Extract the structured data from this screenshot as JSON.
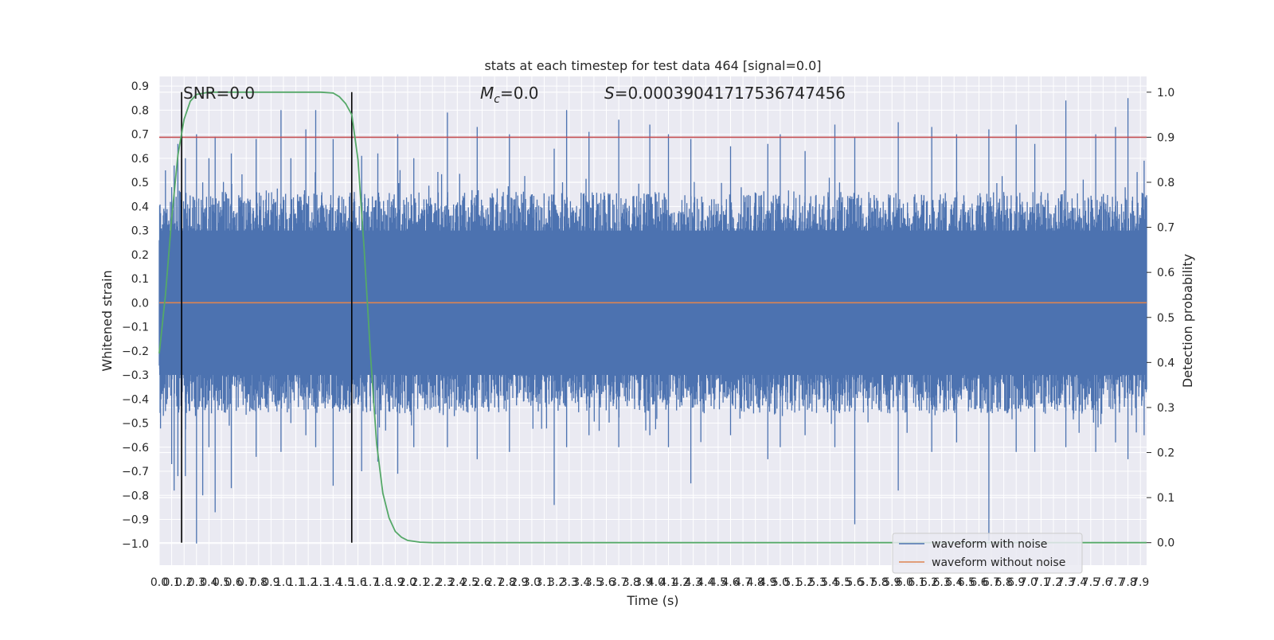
{
  "chart_data": {
    "type": "line",
    "title": "stats at each timestep for test data 464 [signal=0.0]",
    "xlabel": "Time (s)",
    "ylabel": "Whitened strain",
    "y2label": "Detection probability",
    "xlim": [
      0.0,
      7.95
    ],
    "ylim": [
      -1.09,
      0.94
    ],
    "y2lim": [
      -0.05,
      1.035
    ],
    "xticks": [
      "0.0",
      "0.1",
      "0.2",
      "0.3",
      "0.4",
      "0.5",
      "0.6",
      "0.7",
      "0.8",
      "0.9",
      "1.0",
      "1.1",
      "1.2",
      "1.3",
      "1.4",
      "1.5",
      "1.6",
      "1.7",
      "1.8",
      "1.9",
      "2.0",
      "2.1",
      "2.2",
      "2.3",
      "2.4",
      "2.5",
      "2.6",
      "2.7",
      "2.8",
      "2.9",
      "3.0",
      "3.1",
      "3.2",
      "3.3",
      "3.4",
      "3.5",
      "3.6",
      "3.7",
      "3.8",
      "3.9",
      "4.0",
      "4.1",
      "4.2",
      "4.3",
      "4.4",
      "4.5",
      "4.6",
      "4.7",
      "4.8",
      "4.9",
      "5.0",
      "5.1",
      "5.2",
      "5.3",
      "5.4",
      "5.5",
      "5.6",
      "5.7",
      "5.8",
      "5.9",
      "6.0",
      "6.1",
      "6.2",
      "6.3",
      "6.4",
      "6.5",
      "6.6",
      "6.7",
      "6.8",
      "6.9",
      "7.0",
      "7.1",
      "7.2",
      "7.3",
      "7.4",
      "7.5",
      "7.6",
      "7.7",
      "7.8",
      "7.9"
    ],
    "yticks": [
      "0.9",
      "0.8",
      "0.7",
      "0.6",
      "0.5",
      "0.4",
      "0.3",
      "0.2",
      "0.1",
      "0.0",
      "−0.1",
      "−0.2",
      "−0.3",
      "−0.4",
      "−0.5",
      "−0.6",
      "−0.7",
      "−0.8",
      "−0.9",
      "−1.0"
    ],
    "y2ticks": [
      "1.0",
      "0.9",
      "0.8",
      "0.7",
      "0.6",
      "0.5",
      "0.4",
      "0.3",
      "0.2",
      "0.1",
      "0.0"
    ],
    "annotations": {
      "snr": "SNR=0.0",
      "mc_symbol": "M",
      "mc_sub": "c",
      "mc_value": "=0.0",
      "s_symbol": "S",
      "s_value": "=0.00039041717536747456"
    },
    "series": [
      {
        "name": "waveform with noise",
        "color": "#4c72b0",
        "description": "noise spanning roughly -1.0 to 0.85",
        "spikes": [
          [
            0.05,
            0.55,
            -0.45
          ],
          [
            0.1,
            0.48,
            -0.67
          ],
          [
            0.12,
            0.57,
            -0.78
          ],
          [
            0.15,
            0.66,
            -0.72
          ],
          [
            0.18,
            0.4,
            -0.56
          ],
          [
            0.21,
            0.6,
            -0.72
          ],
          [
            0.3,
            0.7,
            -1.0
          ],
          [
            0.35,
            0.5,
            -0.8
          ],
          [
            0.4,
            0.6,
            -0.6
          ],
          [
            0.45,
            0.69,
            -0.87
          ],
          [
            0.58,
            0.62,
            -0.77
          ],
          [
            0.78,
            0.68,
            -0.64
          ],
          [
            0.98,
            0.8,
            -0.62
          ],
          [
            1.06,
            0.6,
            -0.5
          ],
          [
            1.18,
            0.72,
            -0.55
          ],
          [
            1.26,
            0.8,
            -0.6
          ],
          [
            1.4,
            0.68,
            -0.76
          ],
          [
            1.55,
            0.85,
            -0.81
          ],
          [
            1.63,
            0.61,
            -0.7
          ],
          [
            1.76,
            0.62,
            -0.66
          ],
          [
            1.92,
            0.7,
            -0.71
          ],
          [
            2.05,
            0.6,
            -0.6
          ],
          [
            2.32,
            0.79,
            -0.6
          ],
          [
            2.56,
            0.73,
            -0.65
          ],
          [
            2.82,
            0.7,
            -0.62
          ],
          [
            3.18,
            0.64,
            -0.84
          ],
          [
            3.28,
            0.8,
            -0.6
          ],
          [
            3.46,
            0.71,
            -0.55
          ],
          [
            3.7,
            0.76,
            -0.6
          ],
          [
            3.95,
            0.74,
            -0.55
          ],
          [
            4.1,
            0.7,
            -0.6
          ],
          [
            4.28,
            0.68,
            -0.75
          ],
          [
            4.6,
            0.65,
            -0.55
          ],
          [
            4.9,
            0.66,
            -0.65
          ],
          [
            5.0,
            0.7,
            -0.6
          ],
          [
            5.2,
            0.63,
            -0.55
          ],
          [
            5.44,
            0.74,
            -0.6
          ],
          [
            5.6,
            0.69,
            -0.92
          ],
          [
            5.95,
            0.75,
            -0.78
          ],
          [
            6.22,
            0.73,
            -0.62
          ],
          [
            6.42,
            0.7,
            -0.58
          ],
          [
            6.68,
            0.72,
            -0.99
          ],
          [
            6.9,
            0.74,
            -0.62
          ],
          [
            7.05,
            0.66,
            -0.62
          ],
          [
            7.3,
            0.84,
            -0.6
          ],
          [
            7.54,
            0.7,
            -0.62
          ],
          [
            7.7,
            0.73,
            -0.58
          ],
          [
            7.8,
            0.85,
            -0.65
          ],
          [
            7.93,
            0.59,
            -0.55
          ]
        ]
      },
      {
        "name": "waveform without noise",
        "color": "#dd8452",
        "y": 0.0
      }
    ],
    "probability_series": {
      "color": "#55a868",
      "points": [
        [
          0.0,
          0.42
        ],
        [
          0.05,
          0.55
        ],
        [
          0.1,
          0.72
        ],
        [
          0.15,
          0.86
        ],
        [
          0.2,
          0.94
        ],
        [
          0.25,
          0.98
        ],
        [
          0.3,
          0.995
        ],
        [
          0.4,
          1.0
        ],
        [
          1.3,
          1.0
        ],
        [
          1.4,
          0.998
        ],
        [
          1.45,
          0.99
        ],
        [
          1.5,
          0.975
        ],
        [
          1.55,
          0.95
        ],
        [
          1.6,
          0.85
        ],
        [
          1.65,
          0.65
        ],
        [
          1.7,
          0.42
        ],
        [
          1.75,
          0.22
        ],
        [
          1.8,
          0.11
        ],
        [
          1.85,
          0.055
        ],
        [
          1.9,
          0.025
        ],
        [
          1.95,
          0.012
        ],
        [
          2.0,
          0.005
        ],
        [
          2.1,
          0.001
        ],
        [
          2.2,
          0.0
        ],
        [
          7.95,
          0.0
        ]
      ]
    },
    "threshold": {
      "value": 0.9,
      "color": "#c44e52",
      "axis": "y2"
    },
    "vlines": [
      0.18,
      1.55
    ],
    "legend": {
      "position": "lower-right"
    }
  }
}
